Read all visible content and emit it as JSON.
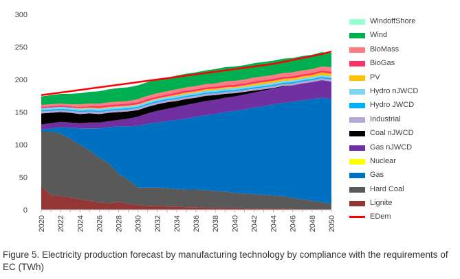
{
  "chart_data": {
    "type": "area",
    "x": [
      2020,
      2021,
      2022,
      2023,
      2024,
      2025,
      2026,
      2027,
      2028,
      2029,
      2030,
      2031,
      2032,
      2033,
      2034,
      2035,
      2036,
      2037,
      2038,
      2039,
      2040,
      2041,
      2042,
      2043,
      2044,
      2045,
      2046,
      2047,
      2048,
      2049,
      2050
    ],
    "x_tick_labels": [
      "2020",
      "2022",
      "2024",
      "2026",
      "2028",
      "2030",
      "2032",
      "2034",
      "2036",
      "2038",
      "2040",
      "2042",
      "2044",
      "2046",
      "2048",
      "2050"
    ],
    "y_ticks": [
      0,
      50,
      100,
      150,
      200,
      250,
      300
    ],
    "ylim": [
      0,
      300
    ],
    "stack_order_bottom_to_top": [
      "Lignite",
      "Hard Coal",
      "Gas",
      "Nuclear",
      "Gas nJWCD",
      "Coal nJWCD",
      "Industrial",
      "Hydro JWCD",
      "Hydro nJWCD",
      "PV",
      "BioGas",
      "BioMass",
      "Wind",
      "WindoffShore"
    ],
    "series": [
      {
        "name": "Lignite",
        "color": "#943634",
        "values": [
          37,
          22,
          21,
          19,
          16,
          14,
          11,
          10,
          12,
          9,
          7,
          6,
          6,
          5,
          5,
          4,
          4,
          3,
          3,
          3,
          3,
          2,
          2,
          2,
          2,
          2,
          1,
          1,
          1,
          1,
          1
        ]
      },
      {
        "name": "Hard Coal",
        "color": "#595959",
        "values": [
          83,
          98,
          96,
          90,
          84,
          77,
          69,
          61,
          43,
          37,
          27,
          28,
          28,
          28,
          27,
          27,
          27,
          27,
          26,
          25,
          23,
          23,
          22,
          21,
          20,
          19,
          17,
          15,
          13,
          11,
          8
        ]
      },
      {
        "name": "Gas",
        "color": "#0070C0",
        "values": [
          3,
          5,
          10,
          17,
          25,
          34,
          45,
          56,
          73,
          82,
          95,
          98,
          100,
          103,
          106,
          109,
          112,
          115,
          118,
          122,
          126,
          129,
          133,
          136,
          140,
          143,
          148,
          152,
          156,
          160,
          161
        ]
      },
      {
        "name": "Nuclear",
        "color": "#FFFF00",
        "values": [
          0,
          0,
          0,
          0,
          0,
          0,
          0,
          0,
          0,
          0,
          0,
          0,
          0,
          0,
          0,
          0,
          0,
          0,
          0,
          0,
          0,
          0,
          0,
          0,
          0,
          0,
          0,
          0,
          0,
          0,
          0
        ]
      },
      {
        "name": "Gas nJWCD",
        "color": "#7030A0",
        "values": [
          8,
          8,
          8,
          8,
          8,
          9,
          9,
          9,
          10,
          12,
          14,
          16,
          18,
          19,
          20,
          21,
          21,
          22,
          22,
          22,
          22,
          23,
          23,
          24,
          24,
          25,
          25,
          26,
          26,
          27,
          27
        ]
      },
      {
        "name": "Coal nJWCD",
        "color": "#000000",
        "values": [
          17,
          16,
          15,
          15,
          14,
          14,
          13,
          13,
          12,
          11,
          10,
          10,
          10,
          10,
          9,
          9,
          8,
          8,
          7,
          6,
          5,
          4,
          3,
          2,
          1,
          1,
          0,
          0,
          0,
          0,
          0
        ]
      },
      {
        "name": "Industrial",
        "color": "#B4A7D6",
        "values": [
          3,
          3,
          3,
          3,
          3,
          3,
          3,
          3,
          3,
          3,
          3,
          3,
          3,
          3,
          3,
          3,
          3,
          3,
          3,
          3,
          3,
          3,
          3,
          3,
          3,
          3,
          3,
          3,
          3,
          3,
          3
        ]
      },
      {
        "name": "Hydro JWCD",
        "color": "#00B0F0",
        "values": [
          2,
          2,
          2,
          2,
          2,
          2,
          2,
          2,
          2,
          2,
          2,
          2,
          2,
          2,
          2,
          2,
          2,
          2,
          2,
          2,
          2,
          2,
          2,
          2,
          2,
          2,
          2,
          2,
          2,
          2,
          2
        ]
      },
      {
        "name": "Hydro nJWCD",
        "color": "#7FD3F7",
        "values": [
          3,
          3,
          3,
          3,
          3,
          3,
          3,
          3,
          3,
          3,
          3,
          3,
          3,
          3,
          3,
          3,
          3,
          3,
          3,
          3,
          3,
          3,
          3,
          3,
          3,
          3,
          3,
          3,
          3,
          3,
          3
        ]
      },
      {
        "name": "PV",
        "color": "#FFC000",
        "values": [
          0,
          0,
          0,
          0,
          1,
          1,
          1,
          1,
          1,
          1,
          1,
          1,
          1,
          1,
          2,
          2,
          2,
          2,
          2,
          2,
          2,
          2,
          3,
          3,
          3,
          3,
          3,
          3,
          3,
          4,
          4
        ]
      },
      {
        "name": "BioGas",
        "color": "#FF3366",
        "values": [
          2,
          2,
          2,
          2,
          2,
          2,
          3,
          3,
          3,
          3,
          3,
          3,
          3,
          3,
          3,
          3,
          3,
          3,
          3,
          3,
          3,
          3,
          3,
          3,
          3,
          3,
          3,
          3,
          3,
          3,
          3
        ]
      },
      {
        "name": "BioMass",
        "color": "#FF7C80",
        "values": [
          3,
          3,
          3,
          3,
          4,
          4,
          4,
          4,
          4,
          4,
          5,
          5,
          5,
          5,
          5,
          5,
          5,
          5,
          5,
          6,
          6,
          6,
          6,
          6,
          6,
          6,
          6,
          6,
          6,
          6,
          7
        ]
      },
      {
        "name": "Wind",
        "color": "#00B050",
        "values": [
          13,
          14,
          15,
          16,
          17,
          18,
          19,
          20,
          21,
          21,
          21,
          21,
          21,
          21,
          21,
          21,
          21,
          21,
          22,
          22,
          22,
          22,
          22,
          22,
          22,
          22,
          22,
          22,
          22,
          22,
          22
        ]
      },
      {
        "name": "WindoffShore",
        "color": "#99FFCC",
        "values": [
          0,
          0,
          0,
          0,
          0,
          0,
          0,
          0,
          0,
          0,
          0,
          0,
          0,
          0,
          0,
          0,
          0,
          0,
          0,
          0,
          0,
          0,
          0,
          0,
          0,
          0,
          0,
          0,
          0,
          0,
          0
        ]
      }
    ],
    "line_series": [
      {
        "name": "EDem",
        "color": "#FF0000",
        "values": [
          176,
          178,
          180,
          182,
          184,
          186,
          188,
          190,
          192,
          194,
          196,
          198,
          200,
          202,
          204,
          206,
          208,
          210,
          212,
          214,
          216,
          218,
          220,
          222,
          224,
          227,
          230,
          233,
          236,
          239,
          243
        ]
      }
    ],
    "legend_position": "right",
    "grid": false
  },
  "legend": {
    "items": [
      {
        "label": "WindoffShore",
        "color": "#99FFCC",
        "kind": "area"
      },
      {
        "label": "Wind",
        "color": "#00B050",
        "kind": "area"
      },
      {
        "label": "BioMass",
        "color": "#FF7C80",
        "kind": "area"
      },
      {
        "label": "BioGas",
        "color": "#FF3366",
        "kind": "area"
      },
      {
        "label": "PV",
        "color": "#FFC000",
        "kind": "area"
      },
      {
        "label": "Hydro nJWCD",
        "color": "#7FD3F7",
        "kind": "area"
      },
      {
        "label": "Hydro JWCD",
        "color": "#00B0F0",
        "kind": "area"
      },
      {
        "label": "Industrial",
        "color": "#B4A7D6",
        "kind": "area"
      },
      {
        "label": "Coal nJWCD",
        "color": "#000000",
        "kind": "area"
      },
      {
        "label": "Gas nJWCD",
        "color": "#7030A0",
        "kind": "area"
      },
      {
        "label": "Nuclear",
        "color": "#FFFF00",
        "kind": "area"
      },
      {
        "label": "Gas",
        "color": "#0070C0",
        "kind": "area"
      },
      {
        "label": "Hard Coal",
        "color": "#595959",
        "kind": "area"
      },
      {
        "label": "Lignite",
        "color": "#943634",
        "kind": "area"
      },
      {
        "label": "EDem",
        "color": "#FF0000",
        "kind": "line"
      }
    ]
  },
  "caption": "Figure 5. Electricity production forecast by manufacturing technology by compliance with the requirements of EC (TWh)"
}
